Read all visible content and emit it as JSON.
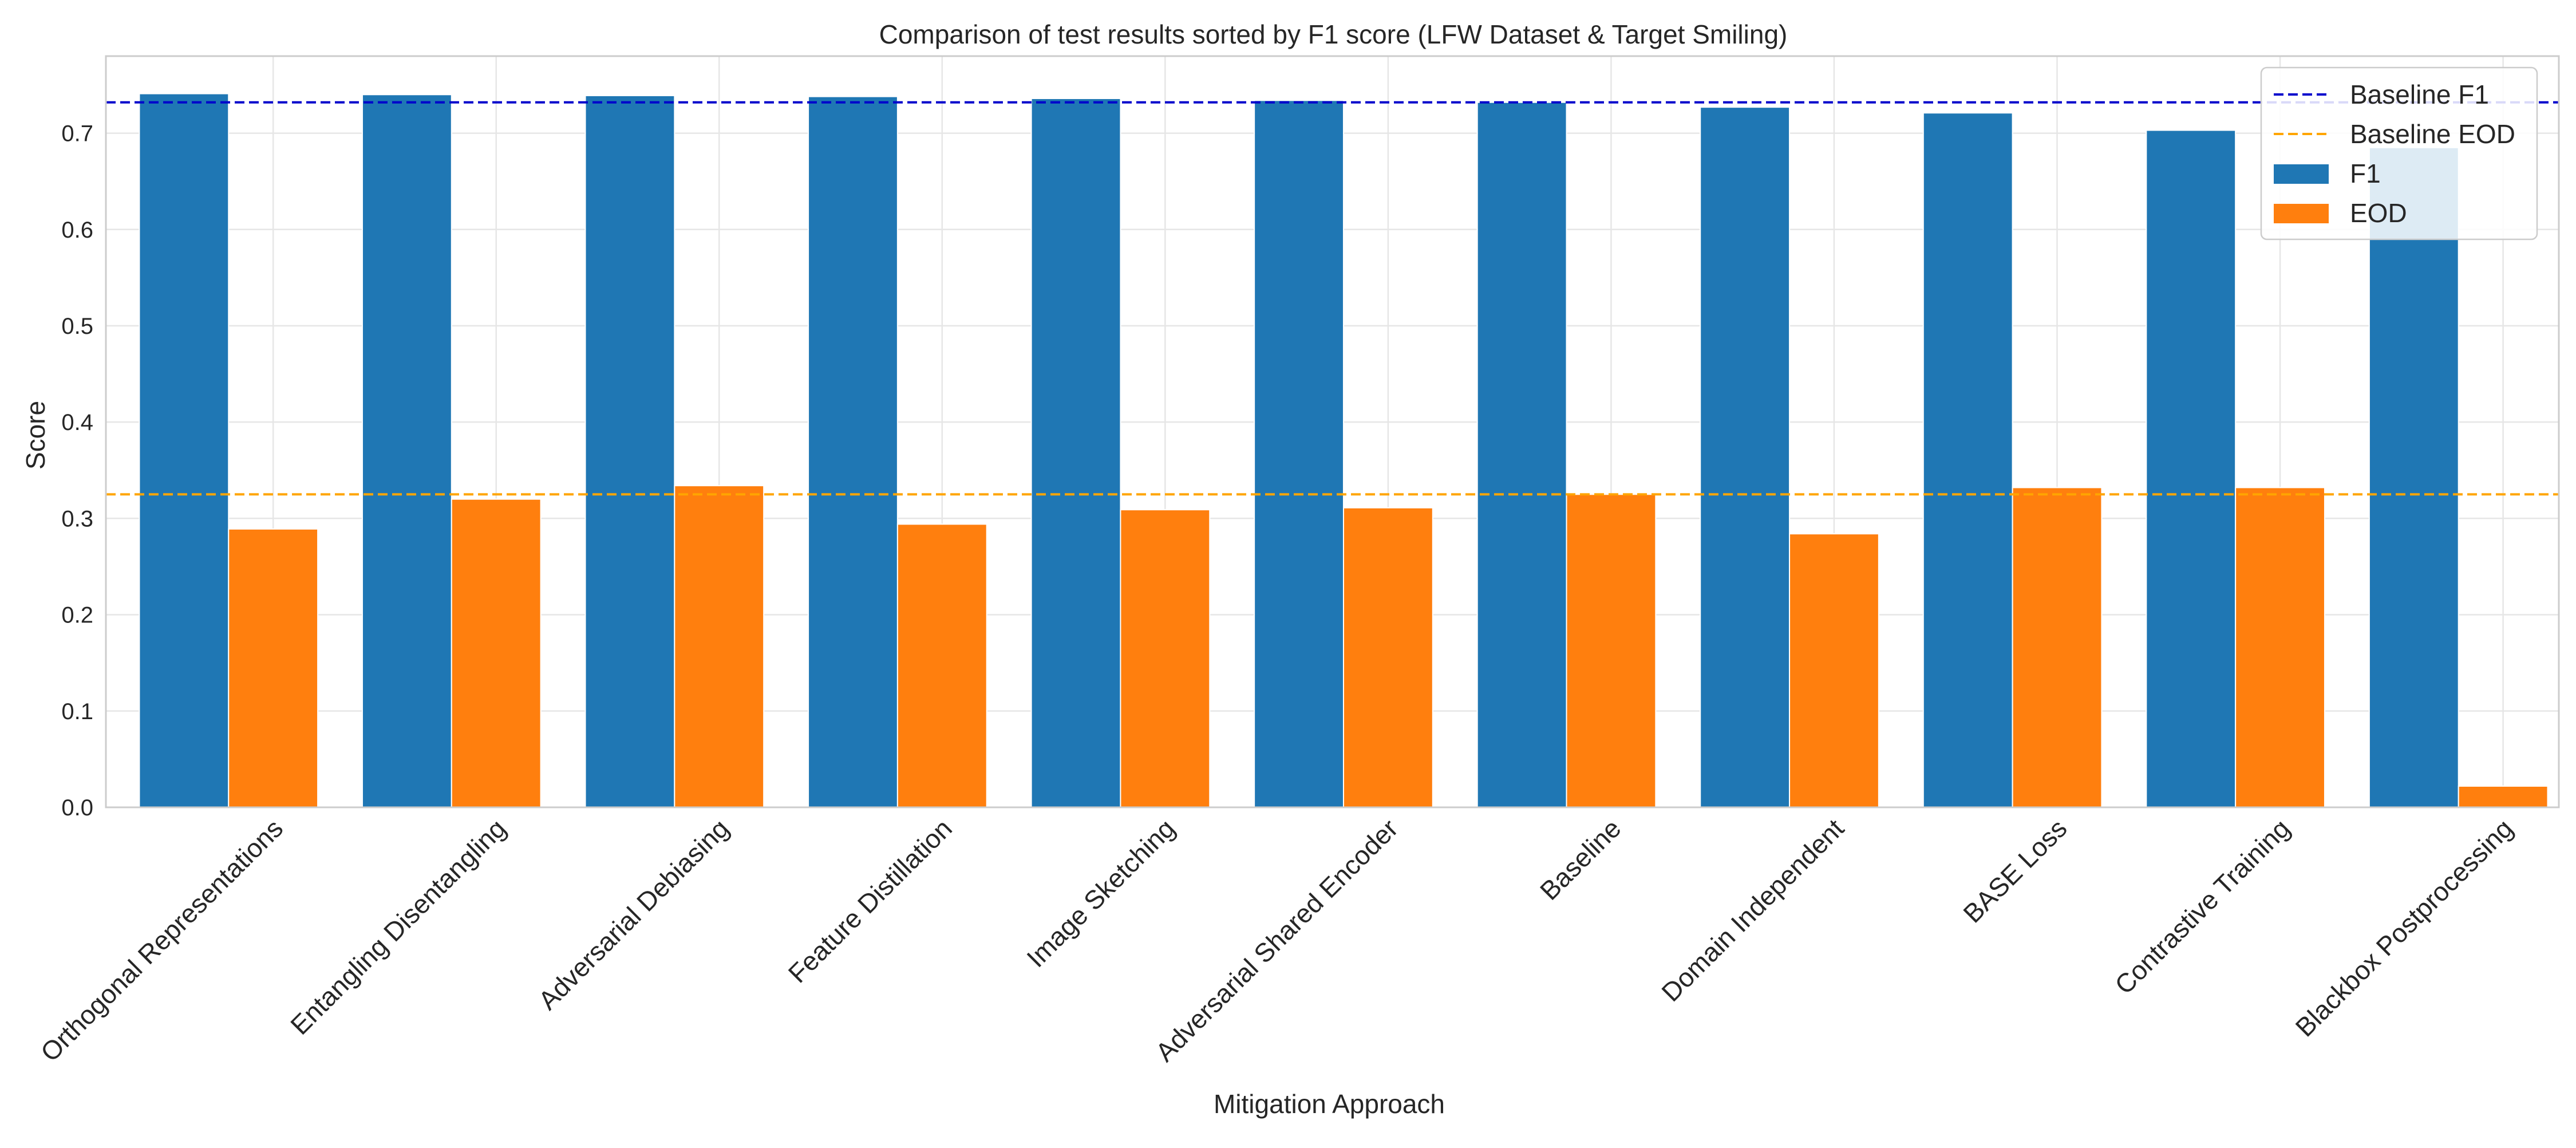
{
  "chart_data": {
    "type": "bar",
    "title": "Comparison of test results sorted by F1 score (LFW Dataset & Target Smiling)",
    "xlabel": "Mitigation Approach",
    "ylabel": "Score",
    "ylim": [
      0,
      0.78
    ],
    "yticks": [
      "0.0",
      "0.1",
      "0.2",
      "0.3",
      "0.4",
      "0.5",
      "0.6",
      "0.7"
    ],
    "grid": true,
    "legend_position": "top-right",
    "categories": [
      "Orthogonal Representations",
      "Entangling Disentangling",
      "Adversarial Debiasing",
      "Feature Distillation",
      "Image Sketching",
      "Adversarial Shared Encoder",
      "Baseline",
      "Domain Independent",
      "BASE Loss",
      "Contrastive Training",
      "Blackbox Postprocessing"
    ],
    "series": [
      {
        "name": "F1",
        "color": "#1f77b4",
        "values": [
          0.741,
          0.74,
          0.739,
          0.738,
          0.736,
          0.734,
          0.732,
          0.727,
          0.721,
          0.703,
          0.685
        ]
      },
      {
        "name": "EOD",
        "color": "#ff7f0e",
        "values": [
          0.289,
          0.32,
          0.334,
          0.294,
          0.309,
          0.311,
          0.325,
          0.284,
          0.332,
          0.332,
          0.022
        ]
      }
    ],
    "reference_lines": [
      {
        "name": "Baseline F1",
        "value": 0.732,
        "color": "#0000cc",
        "style": "dashed"
      },
      {
        "name": "Baseline EOD",
        "value": 0.325,
        "color": "#ffa500",
        "style": "dashed"
      }
    ],
    "legend": [
      {
        "label": "Baseline F1",
        "kind": "line",
        "color": "#0000cc"
      },
      {
        "label": "Baseline EOD",
        "kind": "line",
        "color": "#ffa500"
      },
      {
        "label": "F1",
        "kind": "patch",
        "color": "#1f77b4"
      },
      {
        "label": "EOD",
        "kind": "patch",
        "color": "#ff7f0e"
      }
    ]
  }
}
